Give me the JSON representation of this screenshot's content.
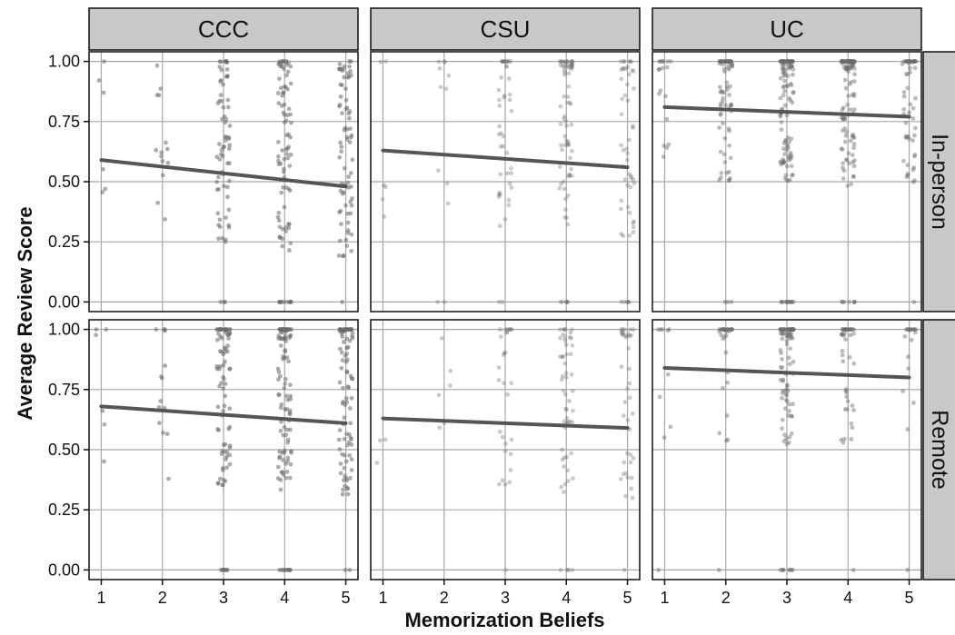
{
  "chart_data": {
    "type": "scatter",
    "xlabel": "Memorization Beliefs",
    "ylabel": "Average Review Score",
    "columns": [
      "CCC",
      "CSU",
      "UC"
    ],
    "rows": [
      "In-person",
      "Remote"
    ],
    "x_ticks": [
      "1",
      "2",
      "3",
      "4",
      "5"
    ],
    "y_ticks": [
      "0.00",
      "0.25",
      "0.50",
      "0.75",
      "1.00"
    ],
    "xlim": [
      0.8,
      5.2
    ],
    "ylim": [
      -0.04,
      1.04
    ],
    "grid": true,
    "colors": {
      "strip_fill": "#c8c8c8",
      "grid": "#a8a8a8",
      "line": "#555555",
      "point": "#6a6a6a",
      "frame": "#111111"
    },
    "panels": [
      {
        "column": "CCC",
        "row": "In-person",
        "fit": {
          "x": [
            1,
            5
          ],
          "y": [
            0.59,
            0.48
          ]
        },
        "counts": [
          6,
          14,
          70,
          90,
          75
        ],
        "point_opacity": 0.55
      },
      {
        "column": "CSU",
        "row": "In-person",
        "fit": {
          "x": [
            1,
            5
          ],
          "y": [
            0.63,
            0.56
          ]
        },
        "counts": [
          6,
          12,
          45,
          75,
          55
        ],
        "point_opacity": 0.35
      },
      {
        "column": "UC",
        "row": "In-person",
        "fit": {
          "x": [
            1,
            5
          ],
          "y": [
            0.81,
            0.77
          ]
        },
        "counts": [
          18,
          80,
          140,
          130,
          60
        ],
        "point_opacity": 0.45
      },
      {
        "column": "CCC",
        "row": "Remote",
        "fit": {
          "x": [
            1,
            5
          ],
          "y": [
            0.68,
            0.61
          ]
        },
        "counts": [
          6,
          14,
          90,
          110,
          95
        ],
        "point_opacity": 0.55
      },
      {
        "column": "CSU",
        "row": "Remote",
        "fit": {
          "x": [
            1,
            5
          ],
          "y": [
            0.63,
            0.59
          ]
        },
        "counts": [
          3,
          6,
          30,
          55,
          40
        ],
        "point_opacity": 0.35
      },
      {
        "column": "UC",
        "row": "Remote",
        "fit": {
          "x": [
            1,
            5
          ],
          "y": [
            0.84,
            0.8
          ]
        },
        "counts": [
          10,
          35,
          100,
          45,
          20
        ],
        "point_opacity": 0.45
      }
    ]
  }
}
